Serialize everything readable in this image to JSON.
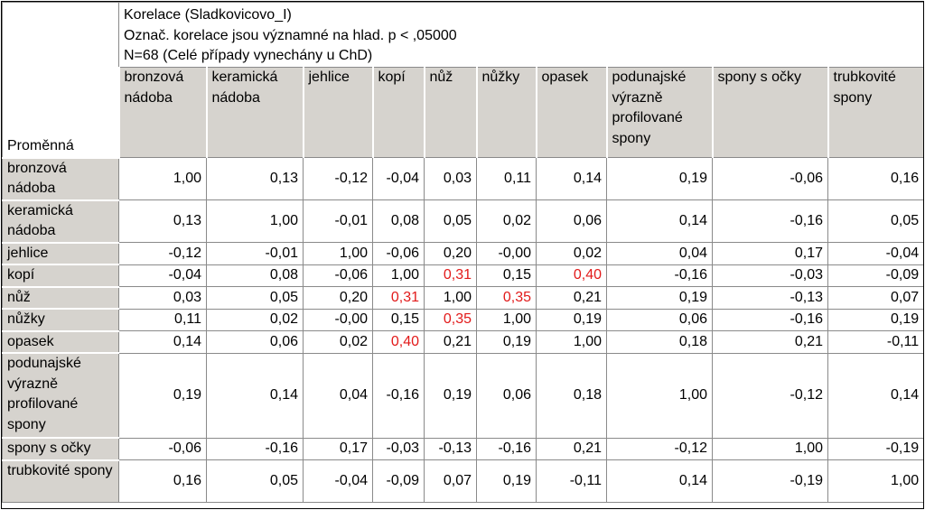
{
  "title_lines": [
    "Korelace (Sladkovicovo_I)",
    "Označ. korelace jsou významné na hlad. p < ,05000",
    "N=68 (Celé případy vynechány u ChD)"
  ],
  "row_header_label": "Proměnná",
  "column_headers": [
    "bronzová nádoba",
    "keramická nádoba",
    "jehlice",
    "kopí",
    "nůž",
    "nůžky",
    "opasek",
    "podunajské výrazně profilované spony",
    "spony s očky",
    "trubkovité spony"
  ],
  "rows": [
    {
      "label": "bronzová nádoba",
      "values": [
        "1,00",
        "0,13",
        "-0,12",
        "-0,04",
        "0,03",
        "0,11",
        "0,14",
        "0,19",
        "-0,06",
        "0,16"
      ],
      "significant": [
        false,
        false,
        false,
        false,
        false,
        false,
        false,
        false,
        false,
        false
      ]
    },
    {
      "label": "keramická nádoba",
      "values": [
        "0,13",
        "1,00",
        "-0,01",
        "0,08",
        "0,05",
        "0,02",
        "0,06",
        "0,14",
        "-0,16",
        "0,05"
      ],
      "significant": [
        false,
        false,
        false,
        false,
        false,
        false,
        false,
        false,
        false,
        false
      ]
    },
    {
      "label": "jehlice",
      "values": [
        "-0,12",
        "-0,01",
        "1,00",
        "-0,06",
        "0,20",
        "-0,00",
        "0,02",
        "0,04",
        "0,17",
        "-0,04"
      ],
      "significant": [
        false,
        false,
        false,
        false,
        false,
        false,
        false,
        false,
        false,
        false
      ]
    },
    {
      "label": "kopí",
      "values": [
        "-0,04",
        "0,08",
        "-0,06",
        "1,00",
        "0,31",
        "0,15",
        "0,40",
        "-0,16",
        "-0,03",
        "-0,09"
      ],
      "significant": [
        false,
        false,
        false,
        false,
        true,
        false,
        true,
        false,
        false,
        false
      ]
    },
    {
      "label": "nůž",
      "values": [
        "0,03",
        "0,05",
        "0,20",
        "0,31",
        "1,00",
        "0,35",
        "0,21",
        "0,19",
        "-0,13",
        "0,07"
      ],
      "significant": [
        false,
        false,
        false,
        true,
        false,
        true,
        false,
        false,
        false,
        false
      ]
    },
    {
      "label": "nůžky",
      "values": [
        "0,11",
        "0,02",
        "-0,00",
        "0,15",
        "0,35",
        "1,00",
        "0,19",
        "0,06",
        "-0,16",
        "0,19"
      ],
      "significant": [
        false,
        false,
        false,
        false,
        true,
        false,
        false,
        false,
        false,
        false
      ]
    },
    {
      "label": "opasek",
      "values": [
        "0,14",
        "0,06",
        "0,02",
        "0,40",
        "0,21",
        "0,19",
        "1,00",
        "0,18",
        "0,21",
        "-0,11"
      ],
      "significant": [
        false,
        false,
        false,
        true,
        false,
        false,
        false,
        false,
        false,
        false
      ]
    },
    {
      "label": "podunajské výrazně profilované spony",
      "values": [
        "0,19",
        "0,14",
        "0,04",
        "-0,16",
        "0,19",
        "0,06",
        "0,18",
        "1,00",
        "-0,12",
        "0,14"
      ],
      "significant": [
        false,
        false,
        false,
        false,
        false,
        false,
        false,
        false,
        false,
        false
      ]
    },
    {
      "label": "spony s očky",
      "values": [
        "-0,06",
        "-0,16",
        "0,17",
        "-0,03",
        "-0,13",
        "-0,16",
        "0,21",
        "-0,12",
        "1,00",
        "-0,19"
      ],
      "significant": [
        false,
        false,
        false,
        false,
        false,
        false,
        false,
        false,
        false,
        false
      ]
    },
    {
      "label": "trubkovité spony",
      "values": [
        "0,16",
        "0,05",
        "-0,04",
        "-0,09",
        "0,07",
        "0,19",
        "-0,11",
        "0,14",
        "-0,19",
        "1,00"
      ],
      "significant": [
        false,
        false,
        false,
        false,
        false,
        false,
        false,
        false,
        false,
        false
      ]
    }
  ],
  "colors": {
    "header_bg": "#d6d3ce",
    "significant": "#e21a1a"
  }
}
